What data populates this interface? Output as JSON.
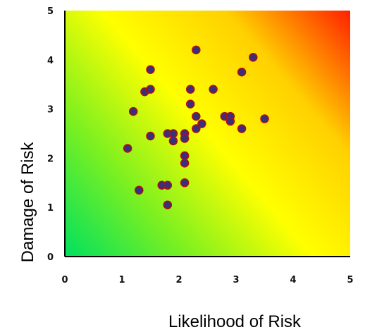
{
  "chart_data": {
    "type": "scatter",
    "title": "",
    "xlabel": "Likelihood of Risk",
    "ylabel": "Damage of Risk",
    "xlim": [
      0,
      5
    ],
    "ylim": [
      0,
      5
    ],
    "x_ticks": [
      "0",
      "1",
      "2",
      "3",
      "4",
      "5"
    ],
    "y_ticks": [
      "0",
      "1",
      "2",
      "3",
      "4",
      "5"
    ],
    "grid": false,
    "background": "risk heatmap gradient: green (low) to yellow to red (high)",
    "gradient_colors": [
      "#00e060",
      "#7cf020",
      "#ffff00",
      "#ffd000",
      "#ff2000"
    ],
    "marker_color": "#3a2f7a",
    "marker_edge_color": "#b01010",
    "series": [
      {
        "points": [
          [
            1.1,
            2.2
          ],
          [
            1.2,
            2.95
          ],
          [
            1.3,
            1.35
          ],
          [
            1.4,
            3.35
          ],
          [
            1.5,
            3.4
          ],
          [
            1.5,
            3.8
          ],
          [
            1.5,
            2.45
          ],
          [
            1.7,
            1.45
          ],
          [
            1.8,
            1.45
          ],
          [
            1.8,
            1.05
          ],
          [
            1.8,
            2.5
          ],
          [
            1.9,
            2.5
          ],
          [
            1.9,
            2.35
          ],
          [
            2.1,
            2.5
          ],
          [
            2.1,
            2.4
          ],
          [
            2.1,
            2.05
          ],
          [
            2.1,
            1.9
          ],
          [
            2.1,
            1.5
          ],
          [
            2.2,
            3.4
          ],
          [
            2.2,
            3.1
          ],
          [
            2.3,
            4.2
          ],
          [
            2.3,
            2.85
          ],
          [
            2.3,
            2.6
          ],
          [
            2.4,
            2.7
          ],
          [
            2.6,
            3.4
          ],
          [
            2.8,
            2.85
          ],
          [
            2.9,
            2.85
          ],
          [
            2.9,
            2.75
          ],
          [
            3.1,
            3.75
          ],
          [
            3.1,
            2.6
          ],
          [
            3.3,
            4.05
          ],
          [
            3.5,
            2.8
          ]
        ]
      }
    ]
  }
}
